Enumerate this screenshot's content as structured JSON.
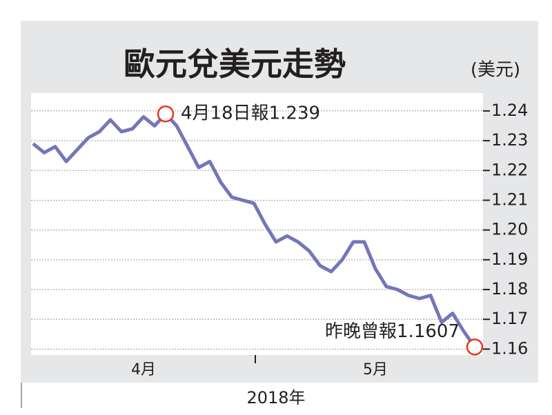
{
  "chart_data": {
    "type": "line",
    "title": "歐元兌美元走勢",
    "unit_label": "(美元)",
    "x_label": "2018年",
    "categories": [
      null,
      null,
      null,
      null,
      null,
      null,
      null,
      null,
      null,
      null,
      "4月",
      null,
      null,
      null,
      null,
      null,
      null,
      null,
      null,
      null,
      null,
      null,
      null,
      null,
      null,
      null,
      null,
      null,
      null,
      null,
      null,
      "5月",
      null,
      null,
      null,
      null,
      null,
      null,
      null,
      null,
      null
    ],
    "series": [
      {
        "name": "歐元兌美元",
        "color": "#7377b8",
        "values": [
          1.229,
          1.226,
          1.228,
          1.223,
          1.227,
          1.231,
          1.233,
          1.237,
          1.233,
          1.234,
          1.238,
          1.235,
          1.239,
          1.235,
          1.228,
          1.221,
          1.223,
          1.216,
          1.211,
          1.21,
          1.209,
          1.202,
          1.196,
          1.198,
          1.196,
          1.193,
          1.188,
          1.186,
          1.19,
          1.196,
          1.196,
          1.187,
          1.181,
          1.18,
          1.178,
          1.177,
          1.178,
          1.169,
          1.172,
          1.166,
          1.1607
        ]
      }
    ],
    "annotations": [
      {
        "text": "4月18日報1.239",
        "color": "#e8341c"
      },
      {
        "text": "昨晚曾報1.1607",
        "color": "#e8341c"
      }
    ],
    "ylim": [
      1.158,
      1.246
    ],
    "yticks": [
      1.16,
      1.17,
      1.18,
      1.19,
      {
        "value": 1.2,
        "label": "1.20"
      },
      1.21,
      1.22,
      1.23,
      1.24
    ],
    "grid": true
  }
}
